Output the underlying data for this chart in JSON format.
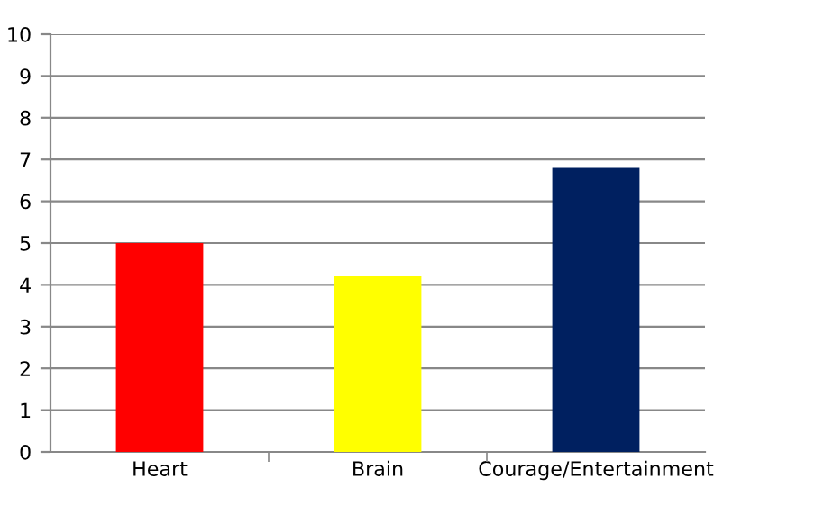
{
  "chart_data": {
    "type": "bar",
    "categories": [
      "Heart",
      "Brain",
      "Courage/Entertainment"
    ],
    "values": [
      5.0,
      4.2,
      6.8
    ],
    "colors": [
      "#ff0000",
      "#ffff00",
      "#002060"
    ],
    "ylim": [
      0,
      10
    ],
    "yticks": [
      0,
      1,
      2,
      3,
      4,
      5,
      6,
      7,
      8,
      9,
      10
    ],
    "grid": "y",
    "legend": false
  }
}
